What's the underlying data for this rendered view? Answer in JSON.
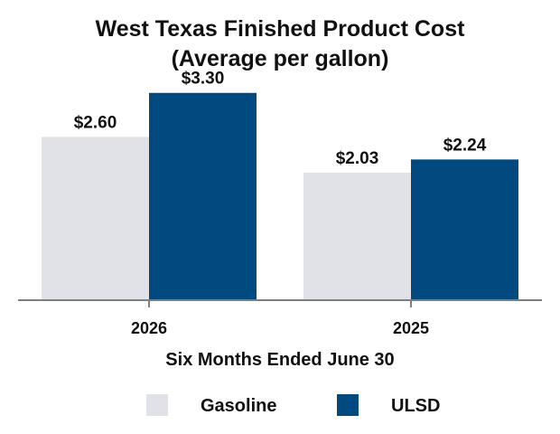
{
  "chart_data": {
    "type": "bar",
    "title": "West Texas Finished Product Cost",
    "subtitle": "(Average per gallon)",
    "xlabel": "Six Months Ended June 30",
    "ylabel": "",
    "categories": [
      "2026",
      "2025"
    ],
    "series": [
      {
        "name": "Gasoline",
        "values": [
          2.6,
          2.03
        ],
        "labels": [
          "$2.60",
          "$2.03"
        ],
        "color": "#e1e2e7"
      },
      {
        "name": "ULSD",
        "values": [
          3.3,
          2.24
        ],
        "labels": [
          "$3.30",
          "$2.24"
        ],
        "color": "#004a80"
      }
    ],
    "ylim": [
      0,
      3.8
    ],
    "grid": false,
    "legend_position": "bottom",
    "axis_color": "#7f7f7f"
  }
}
